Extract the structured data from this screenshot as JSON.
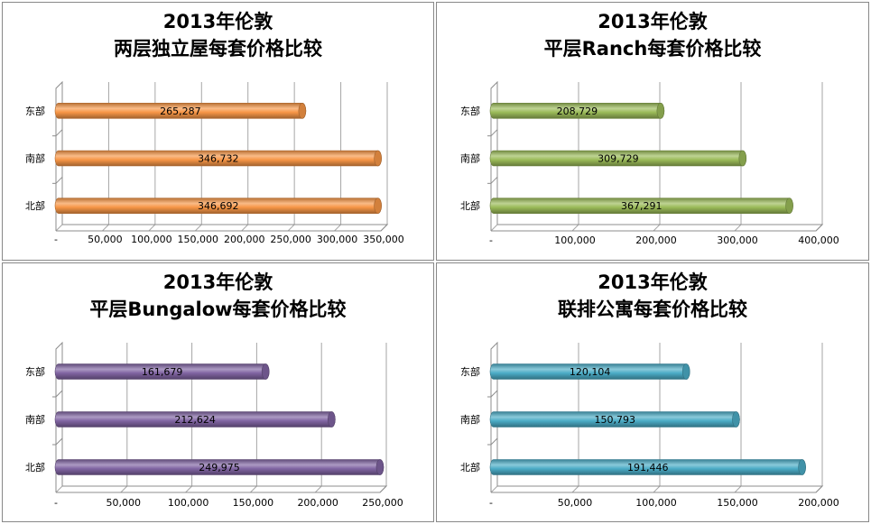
{
  "chart_data": [
    {
      "type": "bar",
      "orientation": "horizontal",
      "title_line1": "2013年伦敦",
      "title_line2": "两层独立屋每套价格比较",
      "categories": [
        "东部",
        "南部",
        "北部"
      ],
      "values": [
        265287,
        346732,
        346692
      ],
      "value_labels": [
        "265,287",
        "346,732",
        "346,692"
      ],
      "xlim": [
        0,
        350000
      ],
      "ticks": [
        "-",
        "50,000",
        "100,000",
        "150,000",
        "200,000",
        "250,000",
        "300,000",
        "350,000"
      ],
      "color": "#F79646"
    },
    {
      "type": "bar",
      "orientation": "horizontal",
      "title_line1": "2013年伦敦",
      "title_line2": "平层Ranch每套价格比较",
      "categories": [
        "东部",
        "南部",
        "北部"
      ],
      "values": [
        208729,
        309729,
        367291
      ],
      "value_labels": [
        "208,729",
        "309,729",
        "367,291"
      ],
      "xlim": [
        0,
        400000
      ],
      "ticks": [
        "-",
        "100,000",
        "200,000",
        "300,000",
        "400,000"
      ],
      "color": "#9BBB59"
    },
    {
      "type": "bar",
      "orientation": "horizontal",
      "title_line1": "2013年伦敦",
      "title_line2": "平层Bungalow每套价格比较",
      "categories": [
        "东部",
        "南部",
        "北部"
      ],
      "values": [
        161679,
        212624,
        249975
      ],
      "value_labels": [
        "161,679",
        "212,624",
        "249,975"
      ],
      "xlim": [
        0,
        250000
      ],
      "ticks": [
        "-",
        "50,000",
        "100,000",
        "150,000",
        "200,000",
        "250,000"
      ],
      "color": "#8064A2"
    },
    {
      "type": "bar",
      "orientation": "horizontal",
      "title_line1": "2013年伦敦",
      "title_line2": "联排公寓每套价格比较",
      "categories": [
        "东部",
        "南部",
        "北部"
      ],
      "values": [
        120104,
        150793,
        191446
      ],
      "value_labels": [
        "120,104",
        "150,793",
        "191,446"
      ],
      "xlim": [
        0,
        200000
      ],
      "ticks": [
        "-",
        "50,000",
        "100,000",
        "150,000",
        "200,000"
      ],
      "color": "#4BACC6"
    }
  ]
}
